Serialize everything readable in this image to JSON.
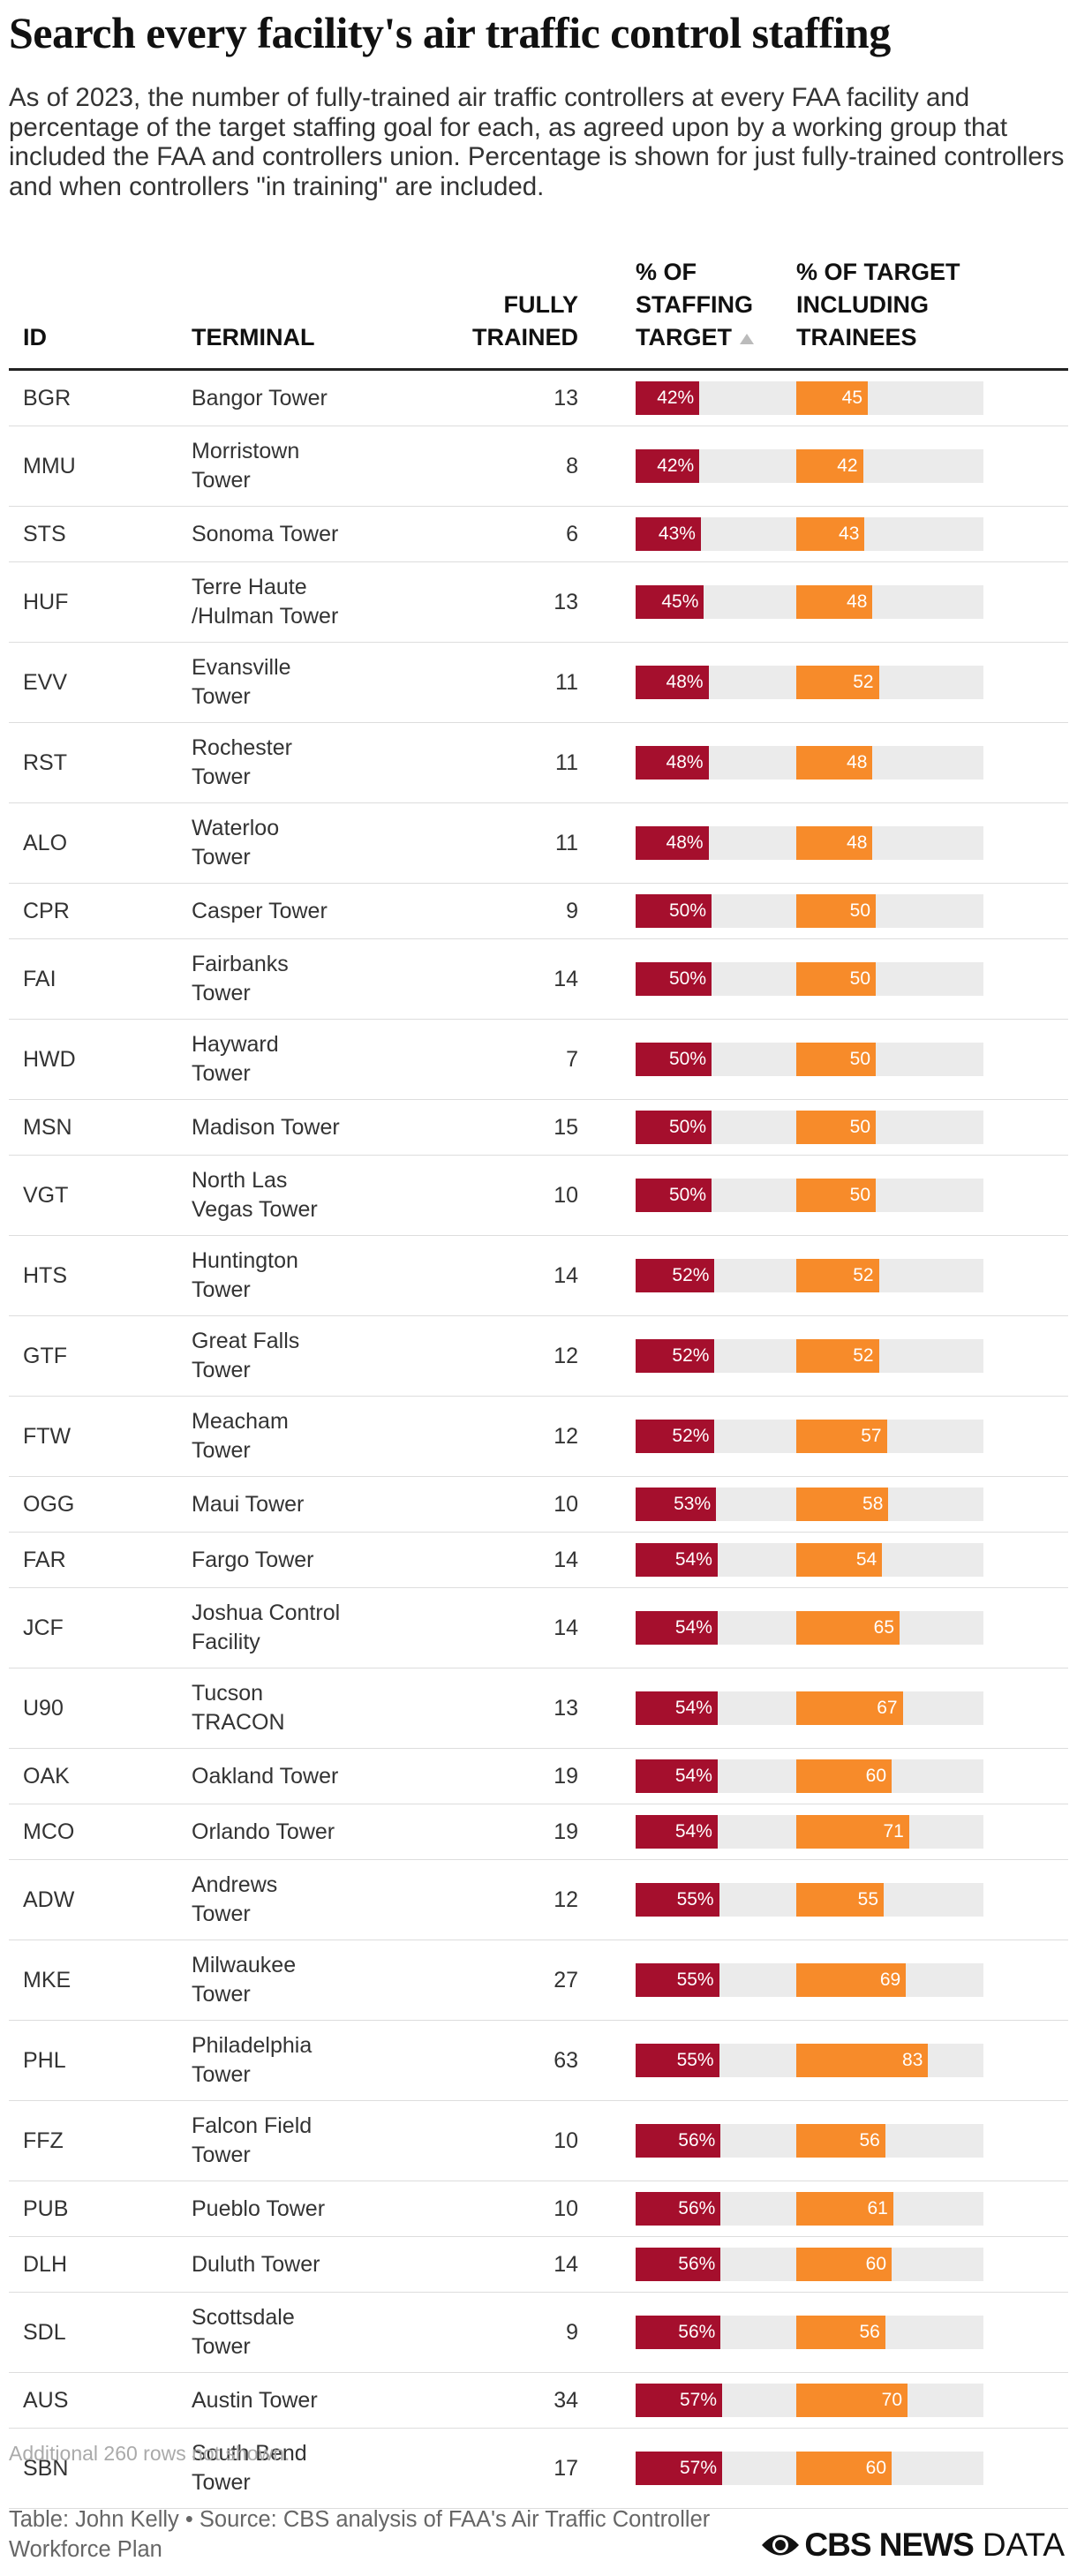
{
  "title": "Search every facility's air traffic control staffing",
  "subtitle": "As of 2023, the number of fully-trained air traffic controllers at every FAA facility and percentage of the target staffing goal for each, as agreed upon by a working group that included the FAA and controllers union. Percentage is shown for just fully-trained controllers and when controllers \"in training\" are included.",
  "table": {
    "columns": [
      "ID",
      "TERMINAL",
      "FULLY\nTRAINED",
      "% OF\nSTAFFING\nTARGET",
      "% OF TARGET\nINCLUDING\nTRAINEES"
    ],
    "rows": [
      {
        "id": "BGR",
        "terminal": "Bangor Tower",
        "fully_trained": 13,
        "pct": 42,
        "pct_label": "42%",
        "pct_trainees": 45
      },
      {
        "id": "MMU",
        "terminal": "Morristown\nTower",
        "fully_trained": 8,
        "pct": 42,
        "pct_label": "42%",
        "pct_trainees": 42
      },
      {
        "id": "STS",
        "terminal": "Sonoma Tower",
        "fully_trained": 6,
        "pct": 43,
        "pct_label": "43%",
        "pct_trainees": 43
      },
      {
        "id": "HUF",
        "terminal": "Terre Haute\n/Hulman Tower",
        "fully_trained": 13,
        "pct": 45,
        "pct_label": "45%",
        "pct_trainees": 48
      },
      {
        "id": "EVV",
        "terminal": "Evansville\nTower",
        "fully_trained": 11,
        "pct": 48,
        "pct_label": "48%",
        "pct_trainees": 52
      },
      {
        "id": "RST",
        "terminal": "Rochester\nTower",
        "fully_trained": 11,
        "pct": 48,
        "pct_label": "48%",
        "pct_trainees": 48
      },
      {
        "id": "ALO",
        "terminal": "Waterloo\nTower",
        "fully_trained": 11,
        "pct": 48,
        "pct_label": "48%",
        "pct_trainees": 48
      },
      {
        "id": "CPR",
        "terminal": "Casper Tower",
        "fully_trained": 9,
        "pct": 50,
        "pct_label": "50%",
        "pct_trainees": 50
      },
      {
        "id": "FAI",
        "terminal": "Fairbanks\nTower",
        "fully_trained": 14,
        "pct": 50,
        "pct_label": "50%",
        "pct_trainees": 50
      },
      {
        "id": "HWD",
        "terminal": "Hayward\nTower",
        "fully_trained": 7,
        "pct": 50,
        "pct_label": "50%",
        "pct_trainees": 50
      },
      {
        "id": "MSN",
        "terminal": "Madison Tower",
        "fully_trained": 15,
        "pct": 50,
        "pct_label": "50%",
        "pct_trainees": 50
      },
      {
        "id": "VGT",
        "terminal": "North Las\nVegas Tower",
        "fully_trained": 10,
        "pct": 50,
        "pct_label": "50%",
        "pct_trainees": 50
      },
      {
        "id": "HTS",
        "terminal": "Huntington\nTower",
        "fully_trained": 14,
        "pct": 52,
        "pct_label": "52%",
        "pct_trainees": 52
      },
      {
        "id": "GTF",
        "terminal": "Great Falls\nTower",
        "fully_trained": 12,
        "pct": 52,
        "pct_label": "52%",
        "pct_trainees": 52
      },
      {
        "id": "FTW",
        "terminal": "Meacham\nTower",
        "fully_trained": 12,
        "pct": 52,
        "pct_label": "52%",
        "pct_trainees": 57
      },
      {
        "id": "OGG",
        "terminal": "Maui Tower",
        "fully_trained": 10,
        "pct": 53,
        "pct_label": "53%",
        "pct_trainees": 58
      },
      {
        "id": "FAR",
        "terminal": "Fargo Tower",
        "fully_trained": 14,
        "pct": 54,
        "pct_label": "54%",
        "pct_trainees": 54
      },
      {
        "id": "JCF",
        "terminal": "Joshua Control\nFacility",
        "fully_trained": 14,
        "pct": 54,
        "pct_label": "54%",
        "pct_trainees": 65
      },
      {
        "id": "U90",
        "terminal": "Tucson\nTRACON",
        "fully_trained": 13,
        "pct": 54,
        "pct_label": "54%",
        "pct_trainees": 67
      },
      {
        "id": "OAK",
        "terminal": "Oakland Tower",
        "fully_trained": 19,
        "pct": 54,
        "pct_label": "54%",
        "pct_trainees": 60
      },
      {
        "id": "MCO",
        "terminal": "Orlando Tower",
        "fully_trained": 19,
        "pct": 54,
        "pct_label": "54%",
        "pct_trainees": 71
      },
      {
        "id": "ADW",
        "terminal": "Andrews\nTower",
        "fully_trained": 12,
        "pct": 55,
        "pct_label": "55%",
        "pct_trainees": 55
      },
      {
        "id": "MKE",
        "terminal": "Milwaukee\nTower",
        "fully_trained": 27,
        "pct": 55,
        "pct_label": "55%",
        "pct_trainees": 69
      },
      {
        "id": "PHL",
        "terminal": "Philadelphia\nTower",
        "fully_trained": 63,
        "pct": 55,
        "pct_label": "55%",
        "pct_trainees": 83
      },
      {
        "id": "FFZ",
        "terminal": "Falcon Field\nTower",
        "fully_trained": 10,
        "pct": 56,
        "pct_label": "56%",
        "pct_trainees": 56
      },
      {
        "id": "PUB",
        "terminal": "Pueblo Tower",
        "fully_trained": 10,
        "pct": 56,
        "pct_label": "56%",
        "pct_trainees": 61
      },
      {
        "id": "DLH",
        "terminal": "Duluth Tower",
        "fully_trained": 14,
        "pct": 56,
        "pct_label": "56%",
        "pct_trainees": 60
      },
      {
        "id": "SDL",
        "terminal": "Scottsdale\nTower",
        "fully_trained": 9,
        "pct": 56,
        "pct_label": "56%",
        "pct_trainees": 56
      },
      {
        "id": "AUS",
        "terminal": "Austin Tower",
        "fully_trained": 34,
        "pct": 57,
        "pct_label": "57%",
        "pct_trainees": 70
      },
      {
        "id": "SBN",
        "terminal": "South Bend\nTower",
        "fully_trained": 17,
        "pct": 57,
        "pct_label": "57%",
        "pct_trainees": 60
      }
    ],
    "pct_color": "#a50f2d",
    "trainees_color": "#f78b2a"
  },
  "note": "Additional 260 rows not shown.",
  "source": "Table: John Kelly • Source: CBS analysis of FAA's Air Traffic Controller\nWorkforce Plan",
  "logo": {
    "brand": "CBS NEWS",
    "suffix": "DATA"
  }
}
